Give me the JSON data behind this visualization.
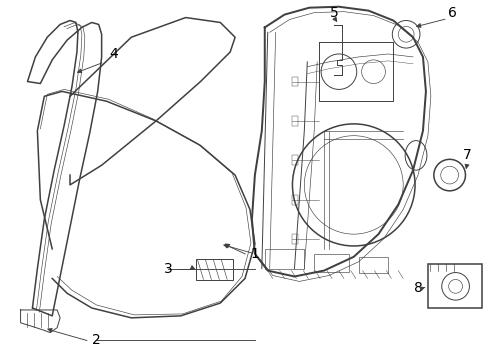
{
  "bg_color": "#ffffff",
  "line_color": "#404040",
  "label_color": "#000000",
  "lw_main": 1.1,
  "lw_med": 0.7,
  "lw_thin": 0.45,
  "figsize": [
    4.9,
    3.6
  ],
  "dpi": 100
}
